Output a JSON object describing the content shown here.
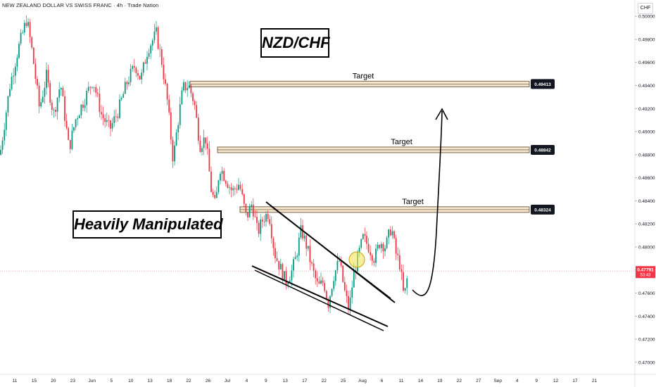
{
  "header": {
    "symbol_title": "NEW ZEALAND DOLLAR VS SWISS FRANC · 4h · Trade Nation",
    "currency": "CHF"
  },
  "annotations": {
    "pair_label": "NZD/CHF",
    "manipulation_label": "Heavily Manipulated"
  },
  "colors": {
    "up": "#089981",
    "down": "#f23645",
    "target_fill": "#f4e6cf",
    "target_border": "#7a6547",
    "current_price": "#f23645",
    "highlight_circle": "#f5e25a"
  },
  "chart_data": {
    "type": "candlestick",
    "timeframe": "4h",
    "ylim": [
      0.4695,
      0.5005
    ],
    "y_ticks": [
      "0.50000",
      "0.49800",
      "0.49600",
      "0.49400",
      "0.49200",
      "0.49000",
      "0.48800",
      "0.48600",
      "0.48400",
      "0.48200",
      "0.48000",
      "0.47800",
      "0.47600",
      "0.47400",
      "0.47200",
      "0.47000"
    ],
    "x_ticks": [
      "11",
      "15",
      "20",
      "23",
      "Jun",
      "5",
      "10",
      "13",
      "18",
      "22",
      "26",
      "Jul",
      "4",
      "9",
      "13",
      "17",
      "22",
      "25",
      "Aug",
      "6",
      "11",
      "14",
      "19",
      "22",
      "27",
      "Sep",
      "4",
      "9",
      "12",
      "17",
      "21"
    ],
    "current_price": {
      "value": "0.47791",
      "countdown": "53:43"
    },
    "targets": [
      {
        "label": "Target",
        "price": 0.49413,
        "price_label": "0.49413"
      },
      {
        "label": "Target",
        "price": 0.48842,
        "price_label": "0.48842"
      },
      {
        "label": "Target",
        "price": 0.48324,
        "price_label": "0.48324"
      }
    ],
    "price_path": [
      [
        0,
        0.488
      ],
      [
        14,
        0.494
      ],
      [
        26,
        0.4972
      ],
      [
        38,
        0.4998
      ],
      [
        46,
        0.4968
      ],
      [
        56,
        0.492
      ],
      [
        66,
        0.4948
      ],
      [
        76,
        0.4915
      ],
      [
        86,
        0.4942
      ],
      [
        98,
        0.4885
      ],
      [
        108,
        0.4912
      ],
      [
        120,
        0.4928
      ],
      [
        132,
        0.4945
      ],
      [
        144,
        0.4915
      ],
      [
        156,
        0.4902
      ],
      [
        168,
        0.4918
      ],
      [
        180,
        0.4942
      ],
      [
        192,
        0.4958
      ],
      [
        200,
        0.4945
      ],
      [
        210,
        0.4972
      ],
      [
        222,
        0.4985
      ],
      [
        230,
        0.496
      ],
      [
        238,
        0.4925
      ],
      [
        246,
        0.4875
      ],
      [
        252,
        0.4905
      ],
      [
        260,
        0.4938
      ],
      [
        268,
        0.494
      ],
      [
        276,
        0.4925
      ],
      [
        284,
        0.4888
      ],
      [
        292,
        0.4895
      ],
      [
        300,
        0.485
      ],
      [
        306,
        0.4835
      ],
      [
        312,
        0.487
      ],
      [
        320,
        0.486
      ],
      [
        330,
        0.4848
      ],
      [
        340,
        0.4855
      ],
      [
        350,
        0.4825
      ],
      [
        358,
        0.4838
      ],
      [
        366,
        0.4812
      ],
      [
        374,
        0.4825
      ],
      [
        382,
        0.483
      ],
      [
        390,
        0.4795
      ],
      [
        398,
        0.4782
      ],
      [
        406,
        0.477
      ],
      [
        414,
        0.4778
      ],
      [
        420,
        0.479
      ],
      [
        428,
        0.4815
      ],
      [
        436,
        0.48
      ],
      [
        444,
        0.478
      ],
      [
        452,
        0.4765
      ],
      [
        460,
        0.477
      ],
      [
        466,
        0.475
      ],
      [
        474,
        0.4775
      ],
      [
        482,
        0.4788
      ],
      [
        490,
        0.476
      ],
      [
        496,
        0.4745
      ],
      [
        502,
        0.4775
      ],
      [
        508,
        0.479
      ],
      [
        516,
        0.4808
      ],
      [
        524,
        0.48
      ],
      [
        532,
        0.479
      ],
      [
        540,
        0.4805
      ],
      [
        548,
        0.48
      ],
      [
        556,
        0.4818
      ],
      [
        562,
        0.4795
      ],
      [
        568,
        0.4785
      ],
      [
        574,
        0.4755
      ],
      [
        580,
        0.4779
      ]
    ]
  }
}
